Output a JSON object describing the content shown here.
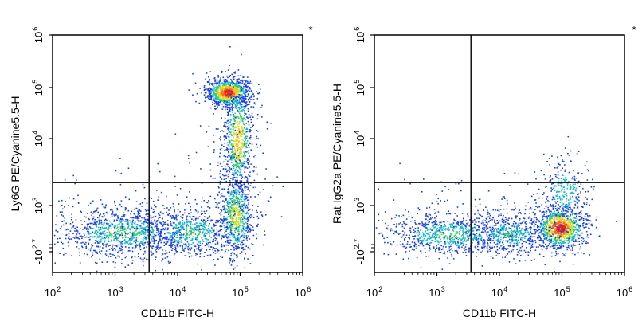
{
  "chart_data": [
    {
      "type": "scatter",
      "subtype": "flow-cytometry-density-dot-plot",
      "xlabel": "CD11b FITC-H",
      "ylabel": "Ly6G PE/Cyanine5.5-H",
      "marker": "*",
      "x_ticks": [
        {
          "label": "10",
          "exp": "2",
          "value": 100
        },
        {
          "label": "10",
          "exp": "3",
          "value": 1000
        },
        {
          "label": "10",
          "exp": "4",
          "value": 10000
        },
        {
          "label": "10",
          "exp": "5",
          "value": 100000
        },
        {
          "label": "10",
          "exp": "6",
          "value": 1000000
        }
      ],
      "y_ticks": [
        {
          "label": "-10",
          "exp": "2.7",
          "value": -501
        },
        {
          "label": "10",
          "exp": "3",
          "value": 1000
        },
        {
          "label": "10",
          "exp": "4",
          "value": 10000
        },
        {
          "label": "10",
          "exp": "5",
          "value": 100000
        },
        {
          "label": "10",
          "exp": "6",
          "value": 1000000
        }
      ],
      "gate": {
        "x": 3500,
        "y": 2200
      },
      "populations": [
        {
          "name": "CD11b+ Ly6G+ (high)",
          "cx": 70000,
          "cy": 70000,
          "density": "high"
        },
        {
          "name": "Ly6G+ vertical streak",
          "cx": 80000,
          "cy": 5000,
          "density": "medium"
        },
        {
          "name": "CD11b- Ly6G- low band",
          "cx": 3000,
          "cy": 300,
          "density": "medium"
        }
      ]
    },
    {
      "type": "scatter",
      "subtype": "flow-cytometry-density-dot-plot",
      "xlabel": "CD11b FITC-H",
      "ylabel": "Rat IgG2a PE/Cyanine5.5-H",
      "marker": "*",
      "x_ticks": [
        {
          "label": "10",
          "exp": "2",
          "value": 100
        },
        {
          "label": "10",
          "exp": "3",
          "value": 1000
        },
        {
          "label": "10",
          "exp": "4",
          "value": 10000
        },
        {
          "label": "10",
          "exp": "5",
          "value": 100000
        },
        {
          "label": "10",
          "exp": "6",
          "value": 1000000
        }
      ],
      "y_ticks": [
        {
          "label": "-10",
          "exp": "2.7",
          "value": -501
        },
        {
          "label": "10",
          "exp": "3",
          "value": 1000
        },
        {
          "label": "10",
          "exp": "4",
          "value": 10000
        },
        {
          "label": "10",
          "exp": "5",
          "value": 100000
        },
        {
          "label": "10",
          "exp": "6",
          "value": 1000000
        }
      ],
      "gate": {
        "x": 3500,
        "y": 2200
      },
      "populations": [
        {
          "name": "CD11b+ isotype (high)",
          "cx": 90000,
          "cy": 350,
          "density": "high"
        },
        {
          "name": "CD11b- low band",
          "cx": 2000,
          "cy": 300,
          "density": "medium"
        }
      ]
    }
  ]
}
